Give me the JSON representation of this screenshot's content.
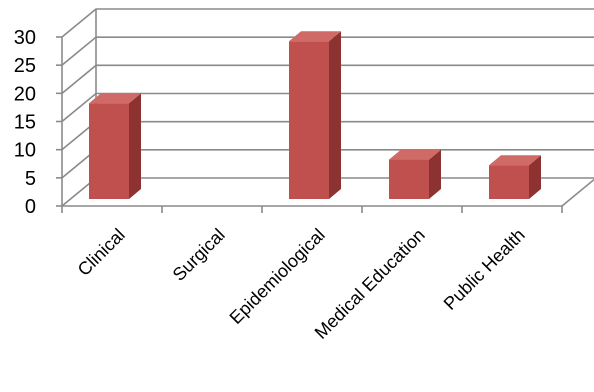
{
  "chart_data": {
    "type": "bar",
    "style": "3d-column",
    "categories": [
      "Clinical",
      "Surgical",
      "Epidemiological",
      "Medical Education",
      "Public Health"
    ],
    "values": [
      17,
      0,
      28,
      7,
      6
    ],
    "title": "",
    "xlabel": "",
    "ylabel": "",
    "ylim": [
      0,
      30
    ],
    "yticks": [
      0,
      5,
      10,
      15,
      20,
      25,
      30
    ],
    "grid": true,
    "legend": "none",
    "bar_color": "#c0504d",
    "bar_side_color": "#8c3331",
    "bar_top_color": "#cf6a67"
  }
}
